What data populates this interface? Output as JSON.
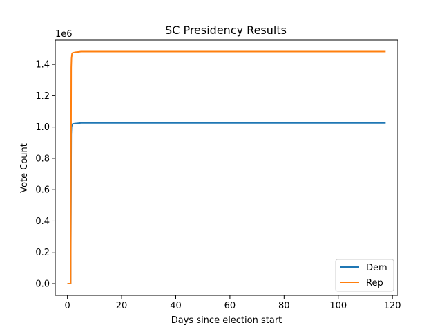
{
  "chart_data": {
    "type": "line",
    "title": "SC Presidency Results",
    "xlabel": "Days since election start",
    "ylabel": "Vote Count",
    "offset_label": "1e6",
    "xlim": [
      -4.5,
      122
    ],
    "ylim": [
      -0.075,
      1.555
    ],
    "x_ticks": [
      0,
      20,
      40,
      60,
      80,
      100,
      120
    ],
    "x_tick_labels": [
      "0",
      "20",
      "40",
      "60",
      "80",
      "100",
      "120"
    ],
    "y_ticks": [
      0.0,
      0.2,
      0.4,
      0.6,
      0.8,
      1.0,
      1.2,
      1.4
    ],
    "y_tick_labels": [
      "0.0",
      "0.2",
      "0.4",
      "0.6",
      "0.8",
      "1.0",
      "1.2",
      "1.4"
    ],
    "grid": false,
    "legend_position": "lower-right",
    "series": [
      {
        "name": "Dem",
        "color": "#1f77b4",
        "x": [
          0,
          1.2,
          1.3,
          1.4,
          1.5,
          1.7,
          2,
          3,
          4,
          5,
          117.5
        ],
        "y": [
          0,
          0,
          0.5,
          0.95,
          1.0,
          1.015,
          1.02,
          1.022,
          1.024,
          1.026,
          1.026
        ]
      },
      {
        "name": "Rep",
        "color": "#ff7f0e",
        "x": [
          0,
          1.2,
          1.3,
          1.4,
          1.5,
          1.7,
          2,
          3,
          4,
          5,
          117.5
        ],
        "y": [
          0,
          0,
          0.7,
          1.38,
          1.44,
          1.47,
          1.475,
          1.478,
          1.48,
          1.482,
          1.482
        ]
      }
    ]
  }
}
